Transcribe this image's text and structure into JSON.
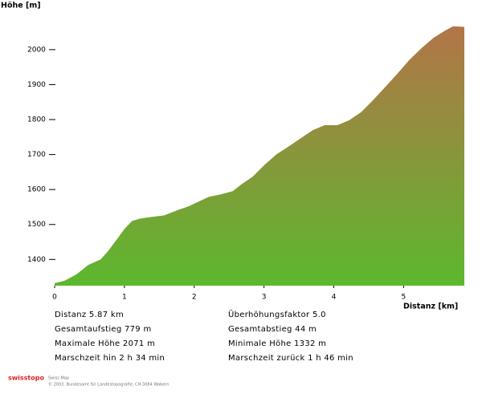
{
  "chart_data": {
    "type": "area",
    "y_label": "Höhe [m]",
    "x_label": "Distanz [km]",
    "x": [
      0,
      0.14,
      0.31,
      0.48,
      0.66,
      0.77,
      0.89,
      1.0,
      1.11,
      1.23,
      1.4,
      1.57,
      1.75,
      1.92,
      2.09,
      2.21,
      2.38,
      2.55,
      2.67,
      2.84,
      3.01,
      3.18,
      3.36,
      3.53,
      3.7,
      3.87,
      4.05,
      4.22,
      4.39,
      4.56,
      4.74,
      4.91,
      5.08,
      5.26,
      5.43,
      5.6,
      5.71,
      5.87
    ],
    "values": [
      1332,
      1339,
      1357,
      1384,
      1400,
      1425,
      1457,
      1487,
      1510,
      1517,
      1522,
      1526,
      1540,
      1552,
      1568,
      1579,
      1586,
      1595,
      1614,
      1637,
      1671,
      1701,
      1724,
      1747,
      1770,
      1784,
      1784,
      1798,
      1821,
      1855,
      1894,
      1931,
      1970,
      2005,
      2034,
      2055,
      2067,
      2065
    ],
    "fill_gradient": [
      "#b37548",
      "#5cb82e"
    ],
    "xlim": [
      0,
      5.87
    ],
    "xticks": [
      0,
      1,
      2,
      3,
      4,
      5
    ],
    "ylim": [
      1325,
      2080
    ],
    "yticks": [
      1400,
      1500,
      1600,
      1700,
      1800,
      1900,
      2000
    ]
  },
  "stats": [
    [
      "Distanz  5.87 km",
      "Überhöhungsfaktor  5.0"
    ],
    [
      "Gesamtaufstieg  779 m",
      "Gesamtabstieg  44 m"
    ],
    [
      "Maximale Höhe  2071 m",
      "Minimale Höhe  1332 m"
    ],
    [
      "Marschzeit hin  2 h 34 min",
      "Marschzeit zurück  1 h 46 min"
    ]
  ],
  "footer": {
    "brand": "swisstopo",
    "line1": "Swiss Map",
    "line2": "© 2003, Bundesamt für Landestopografie, CH-3084 Wabern"
  }
}
